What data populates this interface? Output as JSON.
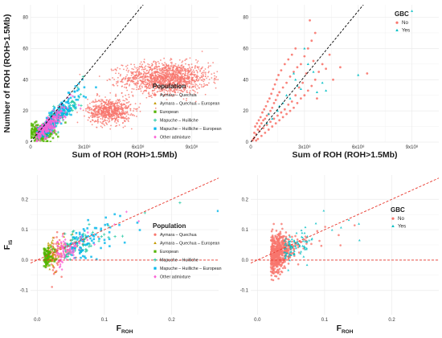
{
  "colors": {
    "aymara_quechua": "#F8766D",
    "aymara_quechua_european": "#C49A00",
    "european": "#53B400",
    "mapuche_huilliche": "#00C094",
    "mapuche_huilliche_european": "#00B6EB",
    "other_admixture": "#FB61D7",
    "gbc_no": "#F8766D",
    "gbc_yes": "#00BFC4",
    "dashed_line_top": "#000000",
    "dashed_line_bottom": "#E8362B",
    "grid": "#EBEBEB",
    "panel_border": "#333333"
  },
  "chart_data": [
    {
      "panel": "top-left",
      "type": "scatter",
      "xlabel": "Sum of ROH (ROH>1.5Mb)",
      "ylabel": "Number of ROH (ROH>1.5Mb)",
      "xlim": [
        0,
        1050000000.0
      ],
      "ylim": [
        0,
        88
      ],
      "xticks": [
        {
          "value": 0,
          "label": "0"
        },
        {
          "value": 300000000.0,
          "label": "3x10⁸"
        },
        {
          "value": 600000000.0,
          "label": "6x10⁸"
        },
        {
          "value": 900000000.0,
          "label": "9x10⁸"
        }
      ],
      "yticks": [
        {
          "value": 0,
          "label": "0"
        },
        {
          "value": 20,
          "label": "20"
        },
        {
          "value": 40,
          "label": "40"
        },
        {
          "value": 60,
          "label": "60"
        },
        {
          "value": 80,
          "label": "80"
        }
      ],
      "grid": true,
      "reference_line": {
        "style": "dashed",
        "slope": 1.4e-07,
        "intercept": 0,
        "color": "black"
      },
      "legend": {
        "placement": "right",
        "title": "Population",
        "entries": [
          "Aymara – Quechua",
          "Aymara – Quechua – European",
          "European",
          "Mapuche – Huilliche",
          "Mapuche – Huilliche – European",
          "Other admixture"
        ]
      },
      "clusters": [
        {
          "group": "Aymara – Quechua",
          "shape": "circle",
          "center": [
            760000000.0,
            41
          ],
          "spread": [
            120000000.0,
            5
          ],
          "note": "large dense simulated cloud"
        },
        {
          "group": "Aymara – Quechua",
          "shape": "circle",
          "center": [
            440000000.0,
            20
          ],
          "spread": [
            60000000.0,
            4
          ],
          "note": "second dense simulated cloud"
        },
        {
          "group": "European",
          "shape": "square",
          "center": [
            50000000.0,
            6
          ],
          "spread": [
            40000000.0,
            3
          ]
        },
        {
          "group": "Mapuche – Huilliche",
          "shape": "plus",
          "center": [
            140000000.0,
            14
          ],
          "spread": [
            80000000.0,
            8
          ]
        },
        {
          "group": "Mapuche – Huilliche – European",
          "shape": "square",
          "center": [
            150000000.0,
            24
          ],
          "spread": [
            100000000.0,
            12
          ]
        },
        {
          "group": "Other admixture",
          "shape": "diamond",
          "center": [
            100000000.0,
            8
          ],
          "spread": [
            70000000.0,
            5
          ]
        }
      ]
    },
    {
      "panel": "top-right",
      "type": "scatter",
      "xlabel": "Sum of ROH (ROH>1.5Mb)",
      "ylabel": "",
      "xlim": [
        0,
        1050000000.0
      ],
      "ylim": [
        0,
        88
      ],
      "xticks": [
        {
          "value": 0,
          "label": "0"
        },
        {
          "value": 300000000.0,
          "label": "3x10⁸"
        },
        {
          "value": 600000000.0,
          "label": "6x10⁸"
        },
        {
          "value": 900000000.0,
          "label": "9x10⁸"
        }
      ],
      "yticks": [
        {
          "value": 0,
          "label": "0"
        },
        {
          "value": 20,
          "label": "20"
        },
        {
          "value": 40,
          "label": "40"
        },
        {
          "value": 60,
          "label": "60"
        },
        {
          "value": 80,
          "label": "80"
        }
      ],
      "grid": true,
      "reference_line": {
        "style": "dashed",
        "slope": 1.4e-07,
        "intercept": 0,
        "color": "black"
      },
      "legend": {
        "placement": "top-right",
        "title": "GBC",
        "entries": [
          "No",
          "Yes"
        ]
      },
      "series": [
        {
          "name": "No",
          "shape": "circle",
          "points": [
            [
              20000000.0,
              3
            ],
            [
              30000000.0,
              5
            ],
            [
              40000000.0,
              8
            ],
            [
              50000000.0,
              10
            ],
            [
              60000000.0,
              12
            ],
            [
              70000000.0,
              14
            ],
            [
              80000000.0,
              15
            ],
            [
              90000000.0,
              17
            ],
            [
              100000000.0,
              18
            ],
            [
              110000000.0,
              20
            ],
            [
              120000000.0,
              22
            ],
            [
              130000000.0,
              25
            ],
            [
              140000000.0,
              27
            ],
            [
              150000000.0,
              30
            ],
            [
              160000000.0,
              32
            ],
            [
              180000000.0,
              35
            ],
            [
              200000000.0,
              38
            ],
            [
              220000000.0,
              42
            ],
            [
              240000000.0,
              45
            ],
            [
              260000000.0,
              48
            ],
            [
              280000000.0,
              50
            ],
            [
              300000000.0,
              55
            ],
            [
              320000000.0,
              60
            ],
            [
              340000000.0,
              65
            ],
            [
              360000000.0,
              70
            ],
            [
              400000000.0,
              50
            ],
            [
              440000000.0,
              56
            ],
            [
              500000000.0,
              48
            ],
            [
              380000000.0,
              45
            ],
            [
              360000000.0,
              40
            ],
            [
              340000000.0,
              36
            ],
            [
              320000000.0,
              33
            ],
            [
              300000000.0,
              30
            ],
            [
              280000000.0,
              28
            ],
            [
              260000000.0,
              25
            ],
            [
              240000000.0,
              22
            ],
            [
              220000000.0,
              20
            ],
            [
              200000000.0,
              18
            ],
            [
              180000000.0,
              16
            ],
            [
              160000000.0,
              14
            ],
            [
              140000000.0,
              12
            ],
            [
              120000000.0,
              10
            ],
            [
              100000000.0,
              8
            ],
            [
              80000000.0,
              6
            ],
            [
              60000000.0,
              4
            ],
            [
              40000000.0,
              2
            ],
            [
              25000000.0,
              10
            ],
            [
              35000000.0,
              12
            ],
            [
              45000000.0,
              14
            ],
            [
              55000000.0,
              16
            ],
            [
              65000000.0,
              19
            ],
            [
              75000000.0,
              21
            ],
            [
              85000000.0,
              23
            ],
            [
              95000000.0,
              26
            ],
            [
              105000000.0,
              28
            ],
            [
              115000000.0,
              31
            ],
            [
              125000000.0,
              34
            ],
            [
              135000000.0,
              37
            ],
            [
              145000000.0,
              40
            ],
            [
              155000000.0,
              43
            ],
            [
              170000000.0,
              46
            ],
            [
              190000000.0,
              50
            ],
            [
              210000000.0,
              53
            ],
            [
              230000000.0,
              56
            ],
            [
              250000000.0,
              60
            ],
            [
              330000000.0,
              78
            ],
            [
              290000000.0,
              38
            ],
            [
              310000000.0,
              44
            ],
            [
              350000000.0,
              52
            ],
            [
              420000000.0,
              47
            ],
            [
              460000000.0,
              40
            ],
            [
              650000000.0,
              44
            ],
            [
              370000000.0,
              28
            ],
            [
              270000000.0,
              35
            ],
            [
              250000000.0,
              30
            ],
            [
              230000000.0,
              26
            ],
            [
              210000000.0,
              24
            ],
            [
              190000000.0,
              21
            ],
            [
              170000000.0,
              19
            ],
            [
              150000000.0,
              17
            ],
            [
              130000000.0,
              15
            ],
            [
              110000000.0,
              13
            ],
            [
              90000000.0,
              11
            ],
            [
              70000000.0,
              9
            ],
            [
              50000000.0,
              7
            ],
            [
              30000000.0,
              1
            ],
            [
              15000000.0,
              2
            ],
            [
              20000000.0,
              6
            ],
            [
              10000000.0,
              1
            ]
          ]
        },
        {
          "name": "Yes",
          "shape": "triangle",
          "points": [
            [
              150000000.0,
              20
            ],
            [
              200000000.0,
              30
            ],
            [
              250000000.0,
              40
            ],
            [
              300000000.0,
              60
            ],
            [
              350000000.0,
              45
            ],
            [
              400000000.0,
              38
            ],
            [
              220000000.0,
              28
            ],
            [
              180000000.0,
              25
            ],
            [
              120000000.0,
              15
            ],
            [
              90000000.0,
              12
            ],
            [
              280000000.0,
              34
            ],
            [
              320000000.0,
              50
            ],
            [
              100000000.0,
              18
            ],
            [
              240000000.0,
              44
            ],
            [
              260000000.0,
              36
            ],
            [
              600000000.0,
              43
            ],
            [
              900000000.0,
              84
            ],
            [
              420000000.0,
              33
            ],
            [
              370000000.0,
              32
            ],
            [
              160000000.0,
              23
            ]
          ]
        }
      ]
    },
    {
      "panel": "bottom-left",
      "type": "scatter",
      "xlabel": "F_ROH",
      "ylabel": "F_IS",
      "xlim": [
        -0.01,
        0.27
      ],
      "ylim": [
        -0.18,
        0.28
      ],
      "xticks": [
        {
          "value": 0.0,
          "label": "0.0"
        },
        {
          "value": 0.1,
          "label": "0.1"
        },
        {
          "value": 0.2,
          "label": "0.2"
        }
      ],
      "yticks": [
        {
          "value": -0.1,
          "label": "-0.1"
        },
        {
          "value": 0.0,
          "label": "0.0"
        },
        {
          "value": 0.1,
          "label": "0.1"
        },
        {
          "value": 0.2,
          "label": "0.2"
        }
      ],
      "grid": true,
      "reference_lines": [
        {
          "style": "dashed",
          "slope": 1,
          "intercept": 0,
          "color": "red"
        },
        {
          "style": "dashed",
          "slope": 0,
          "intercept": 0,
          "color": "red"
        }
      ],
      "legend": {
        "placement": "right",
        "title": "Population",
        "entries": [
          "Aymara – Quechua",
          "Aymara – Quechua – European",
          "European",
          "Mapuche – Huilliche",
          "Mapuche – Huilliche – European",
          "Other admixture"
        ]
      },
      "clusters": [
        {
          "group": "Aymara – Quechua",
          "shape": "circle",
          "center": [
            0.02,
            0.0
          ],
          "spread": [
            0.02,
            0.04
          ]
        },
        {
          "group": "Aymara – Quechua – European",
          "shape": "triangle",
          "center": [
            0.015,
            0.0
          ],
          "spread": [
            0.015,
            0.03
          ]
        },
        {
          "group": "European",
          "shape": "square",
          "center": [
            0.01,
            -0.01
          ],
          "spread": [
            0.01,
            0.02
          ]
        },
        {
          "group": "Mapuche – Huilliche",
          "shape": "plus",
          "center": [
            0.04,
            0.02
          ],
          "spread": [
            0.04,
            0.04
          ]
        },
        {
          "group": "Mapuche – Huilliche – European",
          "shape": "square",
          "center": [
            0.05,
            0.03
          ],
          "spread": [
            0.06,
            0.05
          ]
        },
        {
          "group": "Other admixture",
          "shape": "diamond",
          "center": [
            0.03,
            0.01
          ],
          "spread": [
            0.03,
            0.03
          ]
        }
      ]
    },
    {
      "panel": "bottom-right",
      "type": "scatter",
      "xlabel": "F_ROH",
      "ylabel": "",
      "xlim": [
        -0.01,
        0.27
      ],
      "ylim": [
        -0.18,
        0.28
      ],
      "xticks": [
        {
          "value": 0.0,
          "label": "0.0"
        },
        {
          "value": 0.1,
          "label": "0.1"
        },
        {
          "value": 0.2,
          "label": "0.2"
        }
      ],
      "yticks": [
        {
          "value": -0.1,
          "label": "-0.1"
        },
        {
          "value": 0.0,
          "label": "0.0"
        },
        {
          "value": 0.1,
          "label": "0.1"
        },
        {
          "value": 0.2,
          "label": "0.2"
        }
      ],
      "grid": true,
      "reference_lines": [
        {
          "style": "dashed",
          "slope": 1,
          "intercept": 0,
          "color": "red"
        },
        {
          "style": "dashed",
          "slope": 0,
          "intercept": 0,
          "color": "red"
        }
      ],
      "legend": {
        "placement": "top-right",
        "title": "GBC",
        "entries": [
          "No",
          "Yes"
        ]
      },
      "clusters": [
        {
          "group": "No",
          "shape": "circle",
          "center": [
            0.02,
            0.005
          ],
          "spread": [
            0.025,
            0.04
          ]
        },
        {
          "group": "Yes",
          "shape": "triangle",
          "center": [
            0.04,
            0.03
          ],
          "spread": [
            0.035,
            0.045
          ]
        }
      ]
    }
  ]
}
